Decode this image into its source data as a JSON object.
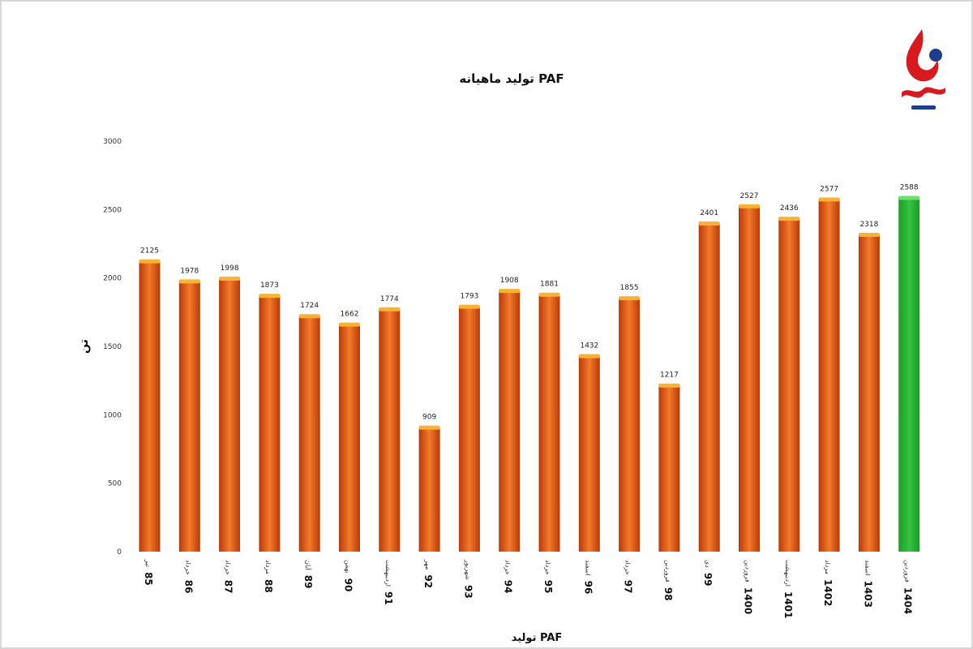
{
  "colors": {
    "bar_default": "#e2520f",
    "bar_default_light": "#f47a2a",
    "bar_default_dark": "#b83a0a",
    "bar_top": "#f9b233",
    "bar_highlight": "#1f9a2a",
    "bar_highlight_light": "#35c23f",
    "bar_highlight_top": "#6be06f",
    "logo_red": "#d71920",
    "logo_blue": "#1f3e8a"
  },
  "logo": {
    "icon": "flame-drop-logo-icon"
  },
  "chart_data": {
    "type": "bar",
    "title": "تولید ماهیانه PAF",
    "ylabel": "تن",
    "xlabel": "تولید PAF",
    "ylim": [
      0,
      3000
    ],
    "yticks": [
      0,
      500,
      1000,
      1500,
      2000,
      2500,
      3000
    ],
    "grid": false,
    "legend": "none",
    "categories": [
      {
        "month": "تیر",
        "year": "85"
      },
      {
        "month": "خرداد",
        "year": "86"
      },
      {
        "month": "خرداد",
        "year": "87"
      },
      {
        "month": "مرداد",
        "year": "88"
      },
      {
        "month": "آبان",
        "year": "89"
      },
      {
        "month": "بهمن",
        "year": "90"
      },
      {
        "month": "اردیبهشت",
        "year": "91"
      },
      {
        "month": "مهر",
        "year": "92"
      },
      {
        "month": "شهریور",
        "year": "93"
      },
      {
        "month": "خرداد",
        "year": "94"
      },
      {
        "month": "خرداد",
        "year": "95"
      },
      {
        "month": "اسفند",
        "year": "96"
      },
      {
        "month": "خرداد",
        "year": "97"
      },
      {
        "month": "فروردین",
        "year": "98"
      },
      {
        "month": "دی",
        "year": "99"
      },
      {
        "month": "فروردین",
        "year": "1400"
      },
      {
        "month": "اردیبهشت",
        "year": "1401"
      },
      {
        "month": "مرداد",
        "year": "1402"
      },
      {
        "month": "اسفند",
        "year": "1403"
      },
      {
        "month": "فروردین",
        "year": "1404"
      }
    ],
    "values": [
      2125,
      1978,
      1998,
      1873,
      1724,
      1662,
      1774,
      909,
      1793,
      1908,
      1881,
      1432,
      1855,
      1217,
      2401,
      2527,
      2436,
      2577,
      2318,
      2588
    ],
    "highlight_index": 19
  }
}
